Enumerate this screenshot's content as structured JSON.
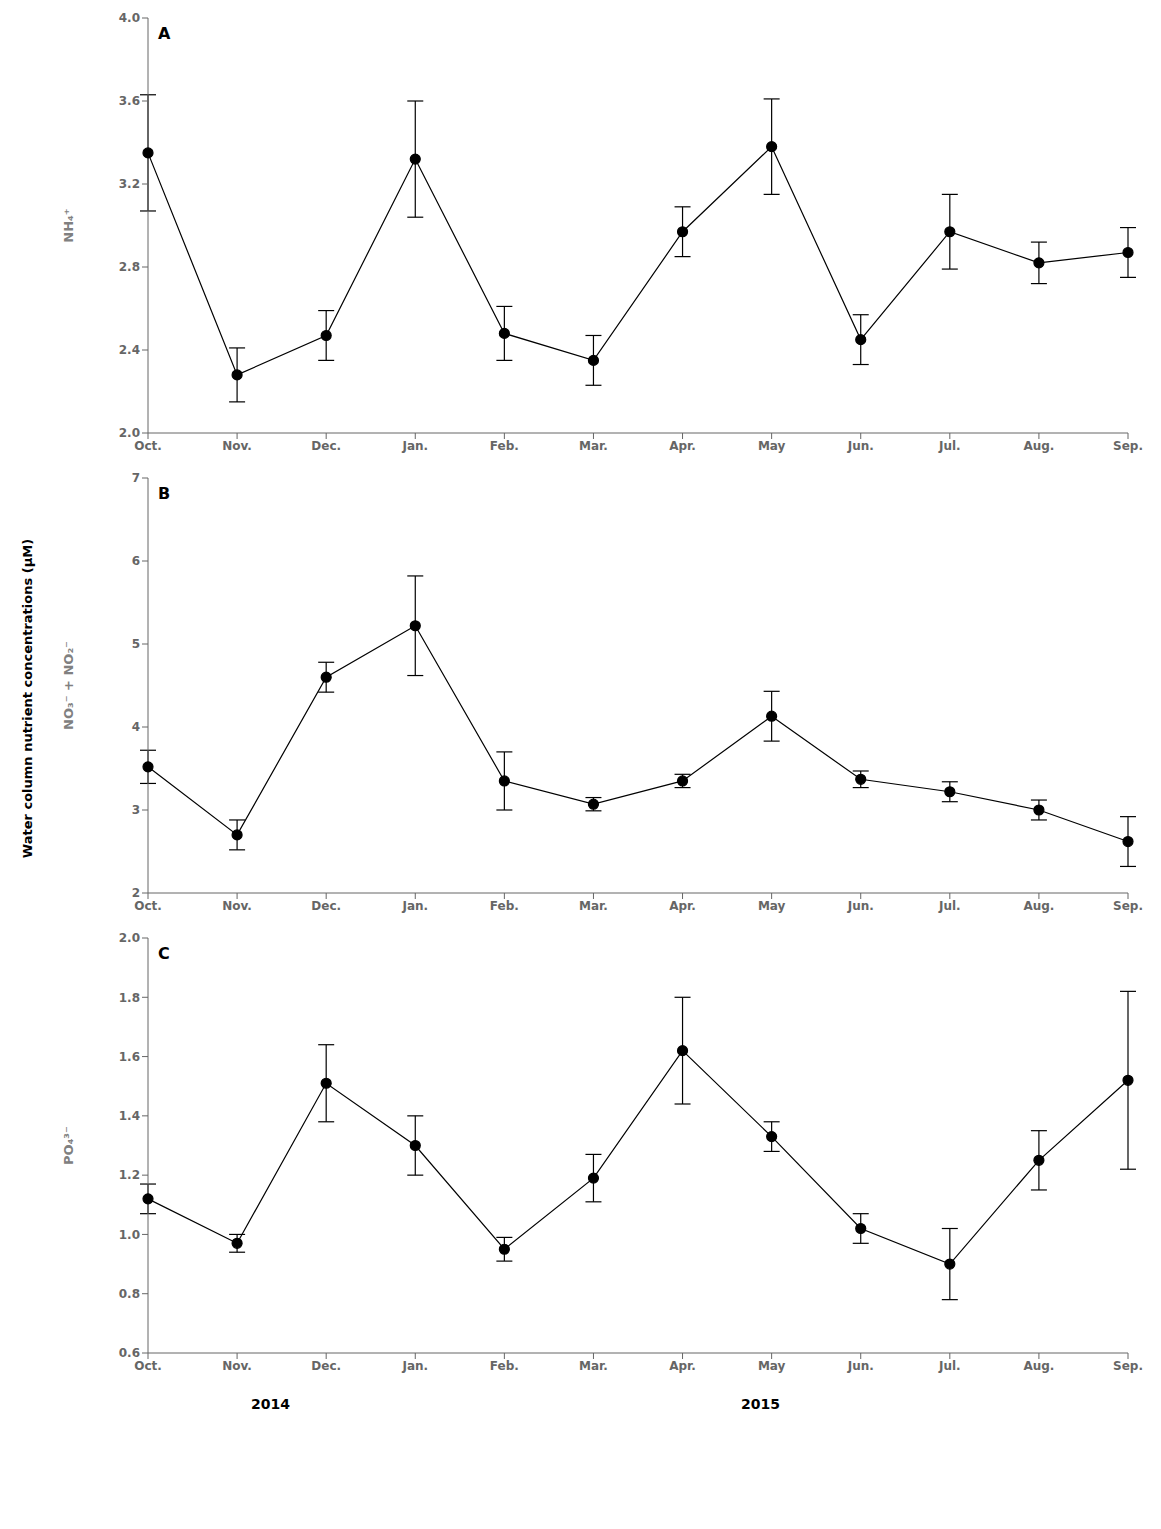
{
  "chart_data": [
    {
      "type": "line",
      "title": "A",
      "ylabel": "NH₄⁺",
      "categories": [
        "Oct.",
        "Nov.",
        "Dec.",
        "Jan.",
        "Feb.",
        "Mar.",
        "Apr.",
        "May",
        "Jun.",
        "Jul.",
        "Aug.",
        "Sep."
      ],
      "values": [
        3.35,
        2.28,
        2.47,
        3.32,
        2.48,
        2.35,
        2.97,
        3.38,
        2.45,
        2.97,
        2.82,
        2.87
      ],
      "errors": [
        0.28,
        0.13,
        0.12,
        0.28,
        0.13,
        0.12,
        0.12,
        0.23,
        0.12,
        0.18,
        0.1,
        0.12
      ],
      "color": "#000000",
      "marker": "circle",
      "grid": false,
      "ylim": [
        2.0,
        4.0
      ],
      "yticks": [
        {
          "value": 2.0,
          "label": "2.0"
        },
        2.4,
        2.8,
        3.2,
        3.6,
        {
          "value": 4.0,
          "label": "4.0"
        }
      ]
    },
    {
      "type": "line",
      "title": "B",
      "ylabel": "NO₃⁻ + NO₂⁻",
      "categories": [
        "Oct.",
        "Nov.",
        "Dec.",
        "Jan.",
        "Feb.",
        "Mar.",
        "Apr.",
        "May",
        "Jun.",
        "Jul.",
        "Aug.",
        "Sep."
      ],
      "values": [
        3.52,
        2.7,
        4.6,
        5.22,
        3.35,
        3.07,
        3.35,
        4.13,
        3.37,
        3.22,
        3.0,
        2.62
      ],
      "errors": [
        0.2,
        0.18,
        0.18,
        0.6,
        0.35,
        0.08,
        0.08,
        0.3,
        0.1,
        0.12,
        0.12,
        0.3
      ],
      "color": "#000000",
      "marker": "circle",
      "grid": false,
      "ylim": [
        2,
        7
      ],
      "yticks": [
        2,
        3,
        4,
        5,
        6,
        7
      ],
      "annotations": [
        "Water column nutrient concentrations (μM)"
      ]
    },
    {
      "type": "line",
      "title": "C",
      "ylabel": "PO₄³⁻",
      "categories": [
        "Oct.",
        "Nov.",
        "Dec.",
        "Jan.",
        "Feb.",
        "Mar.",
        "Apr.",
        "May",
        "Jun.",
        "Jul.",
        "Aug.",
        "Sep."
      ],
      "values": [
        1.12,
        0.97,
        1.51,
        1.3,
        0.95,
        1.19,
        1.62,
        1.33,
        1.02,
        0.9,
        1.25,
        1.52
      ],
      "errors": [
        0.05,
        0.03,
        0.13,
        0.1,
        0.04,
        0.08,
        0.18,
        0.05,
        0.05,
        0.12,
        0.1,
        0.3
      ],
      "color": "#000000",
      "marker": "circle",
      "grid": false,
      "ylim": [
        0.6,
        2.0
      ],
      "yticks": [
        0.6,
        0.8,
        {
          "value": 1.0,
          "label": "1.0"
        },
        1.2,
        1.4,
        1.6,
        1.8,
        {
          "value": 2.0,
          "label": "2.0"
        }
      ],
      "annotations": [
        "2014",
        "2015"
      ]
    }
  ]
}
